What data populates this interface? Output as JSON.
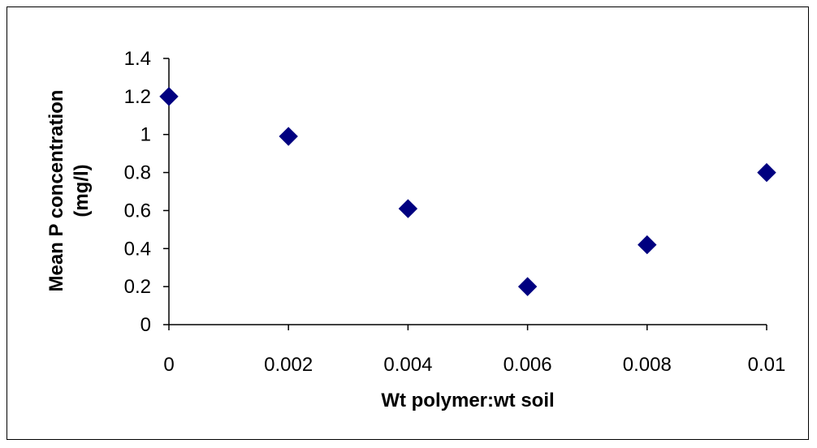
{
  "chart_data": {
    "type": "scatter",
    "xlabel": "Wt polymer:wt soil",
    "ylabel_lines": [
      "Mean P concentration",
      "(mg/l)"
    ],
    "xlim": [
      0,
      0.01
    ],
    "ylim": [
      0,
      1.4
    ],
    "x_ticks": [
      "0",
      "0.002",
      "0.004",
      "0.006",
      "0.008",
      "0.01"
    ],
    "y_ticks": [
      "0",
      "0.2",
      "0.4",
      "0.6",
      "0.8",
      "1",
      "1.2",
      "1.4"
    ],
    "grid": false,
    "legend": "none",
    "marker": "diamond",
    "series": [
      {
        "x": [
          0,
          0.002,
          0.004,
          0.006,
          0.008,
          0.01
        ],
        "y": [
          1.2,
          0.99,
          0.61,
          0.2,
          0.42,
          0.8
        ],
        "color": "#000080"
      }
    ]
  }
}
